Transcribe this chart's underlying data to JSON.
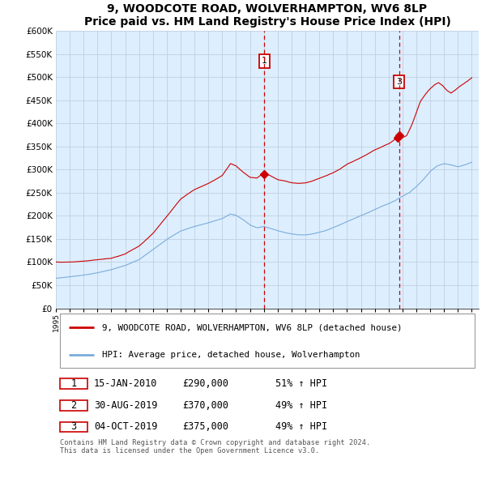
{
  "title": "9, WOODCOTE ROAD, WOLVERHAMPTON, WV6 8LP",
  "subtitle": "Price paid vs. HM Land Registry's House Price Index (HPI)",
  "ylim": [
    0,
    600000
  ],
  "yticks": [
    0,
    50000,
    100000,
    150000,
    200000,
    250000,
    300000,
    350000,
    400000,
    450000,
    500000,
    550000,
    600000
  ],
  "xlim_start": 1995.0,
  "xlim_end": 2025.5,
  "property_color": "#cc0000",
  "hpi_color": "#7aaddb",
  "background_color": "#ddeeff",
  "grid_color": "#c8d8e8",
  "legend_label_property": "9, WOODCOTE ROAD, WOLVERHAMPTON, WV6 8LP (detached house)",
  "legend_label_hpi": "HPI: Average price, detached house, Wolverhampton",
  "transactions": [
    {
      "num": 1,
      "date": "15-JAN-2010",
      "price": "£290,000",
      "hpi": "51% ↑ HPI",
      "year": 2010.04
    },
    {
      "num": 2,
      "date": "30-AUG-2019",
      "price": "£370,000",
      "hpi": "49% ↑ HPI",
      "year": 2019.66
    },
    {
      "num": 3,
      "date": "04-OCT-2019",
      "price": "£375,000",
      "hpi": "49% ↑ HPI",
      "year": 2019.75
    }
  ],
  "vline1_x": 2010.04,
  "vline2_x": 2019.75,
  "sale1_value": 290000,
  "sale2_value": 370000,
  "sale3_value": 375000,
  "sale1_x": 2010.04,
  "sale2_x": 2019.66,
  "sale3_x": 2019.75,
  "footnote": "Contains HM Land Registry data © Crown copyright and database right 2024.\nThis data is licensed under the Open Government Licence v3.0."
}
